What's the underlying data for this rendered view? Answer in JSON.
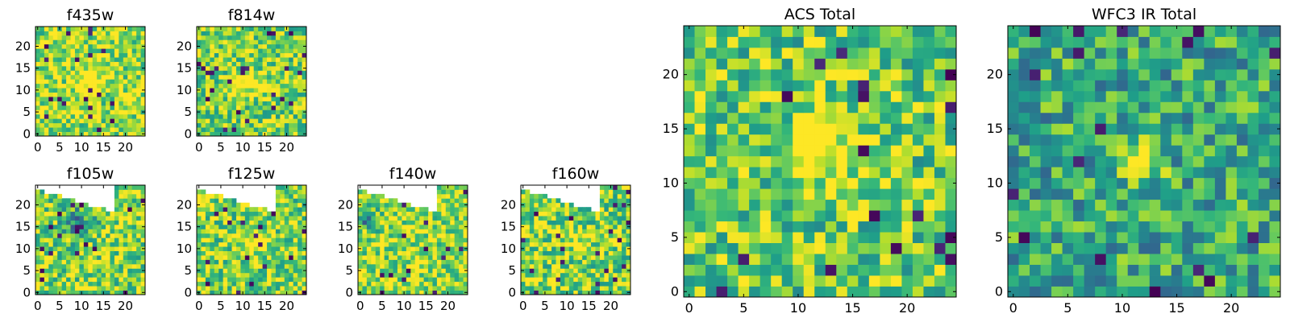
{
  "chart_data": [
    {
      "type": "heatmap",
      "title": "f435w",
      "xticks": [
        "0",
        "5",
        "10",
        "15",
        "20"
      ],
      "yticks": [
        "0",
        "5",
        "10",
        "15",
        "20"
      ],
      "xlim": [
        -0.5,
        24.5
      ],
      "ylim": [
        -0.5,
        24.5
      ],
      "colormap": "viridis",
      "grid_size": 25,
      "seed": 11,
      "blob": [
        12,
        12,
        2.0,
        0.3
      ],
      "mask": "none",
      "bias": 0.35
    },
    {
      "type": "heatmap",
      "title": "f814w",
      "xticks": [
        "0",
        "5",
        "10",
        "15",
        "20"
      ],
      "yticks": [
        "0",
        "5",
        "10",
        "15",
        "20"
      ],
      "xlim": [
        -0.5,
        24.5
      ],
      "ylim": [
        -0.5,
        24.5
      ],
      "colormap": "viridis",
      "grid_size": 25,
      "seed": 23,
      "blob": [
        11,
        12,
        1.8,
        0.45
      ],
      "mask": "none",
      "bias": 0.3
    },
    {
      "type": "heatmap",
      "title": "f105w",
      "xticks": [
        "0",
        "5",
        "10",
        "15",
        "20"
      ],
      "yticks": [
        "0",
        "5",
        "10",
        "15",
        "20"
      ],
      "xlim": [
        -0.5,
        24.5
      ],
      "ylim": [
        -0.5,
        24.5
      ],
      "colormap": "viridis",
      "grid_size": 25,
      "seed": 37,
      "blob": [
        9,
        16,
        2.5,
        -0.35
      ],
      "mask": "rotated",
      "bias": 0.3
    },
    {
      "type": "heatmap",
      "title": "f125w",
      "xticks": [
        "0",
        "5",
        "10",
        "15",
        "20"
      ],
      "yticks": [
        "0",
        "5",
        "10",
        "15",
        "20"
      ],
      "xlim": [
        -0.5,
        24.5
      ],
      "ylim": [
        -0.5,
        24.5
      ],
      "colormap": "viridis",
      "grid_size": 25,
      "seed": 41,
      "blob": [
        12,
        12,
        2.0,
        0.2
      ],
      "mask": "rotated",
      "bias": 0.3
    },
    {
      "type": "heatmap",
      "title": "f140w",
      "xticks": [
        "0",
        "5",
        "10",
        "15",
        "20"
      ],
      "yticks": [
        "0",
        "5",
        "10",
        "15",
        "20"
      ],
      "xlim": [
        -0.5,
        24.5
      ],
      "ylim": [
        -0.5,
        24.5
      ],
      "colormap": "viridis",
      "grid_size": 25,
      "seed": 53,
      "blob": [
        2,
        17,
        1.6,
        -0.45
      ],
      "mask": "rotated",
      "bias": 0.35
    },
    {
      "type": "heatmap",
      "title": "f160w",
      "xticks": [
        "0",
        "5",
        "10",
        "15",
        "20"
      ],
      "yticks": [
        "0",
        "5",
        "10",
        "15",
        "20"
      ],
      "xlim": [
        -0.5,
        24.5
      ],
      "ylim": [
        -0.5,
        24.5
      ],
      "colormap": "viridis",
      "grid_size": 25,
      "seed": 67,
      "blob": [
        12,
        12,
        2.0,
        0.15
      ],
      "mask": "rotated",
      "bias": 0.3
    },
    {
      "type": "heatmap",
      "title": "ACS Total",
      "xticks": [
        "0",
        "5",
        "10",
        "15",
        "20"
      ],
      "yticks": [
        "0",
        "5",
        "10",
        "15",
        "20"
      ],
      "xlim": [
        -0.5,
        24.5
      ],
      "ylim": [
        -0.5,
        24.5
      ],
      "colormap": "viridis",
      "grid_size": 25,
      "seed": 79,
      "blob": [
        12,
        13,
        2.2,
        0.4
      ],
      "mask": "none",
      "bias": 0.25
    },
    {
      "type": "heatmap",
      "title": "WFC3 IR Total",
      "xticks": [
        "0",
        "5",
        "10",
        "15",
        "20"
      ],
      "yticks": [
        "0",
        "5",
        "10",
        "15",
        "20"
      ],
      "xlim": [
        -0.5,
        24.5
      ],
      "ylim": [
        -0.5,
        24.5
      ],
      "colormap": "viridis",
      "grid_size": 25,
      "seed": 97,
      "blob": [
        12,
        12,
        1.2,
        0.55
      ],
      "mask": "none",
      "bias": 0.1
    }
  ]
}
